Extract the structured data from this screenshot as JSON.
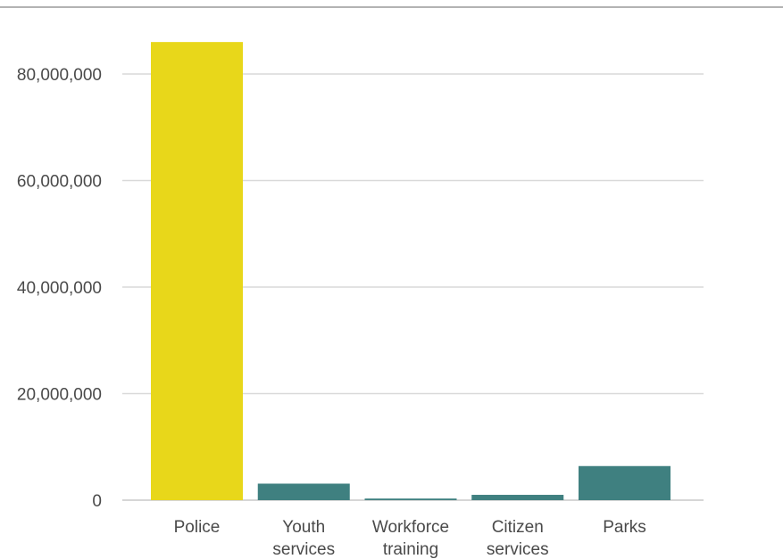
{
  "chart_data": {
    "type": "bar",
    "title": "",
    "xlabel": "",
    "ylabel": "",
    "ylim": [
      0,
      80000000
    ],
    "ymax_visible": 86000000,
    "yticks": [
      0,
      20000000,
      40000000,
      60000000,
      80000000
    ],
    "ytick_labels": [
      "0",
      "20,000,000",
      "40,000,000",
      "60,000,000",
      "80,000,000"
    ],
    "grid": true,
    "categories": [
      [
        "Police"
      ],
      [
        "Youth",
        "services"
      ],
      [
        "Workforce",
        "training"
      ],
      [
        "Citizen",
        "services"
      ],
      [
        "Parks"
      ]
    ],
    "values": [
      86000000,
      3100000,
      300000,
      1000000,
      6400000
    ],
    "colors": [
      "#e8d71a",
      "#3f8080",
      "#3f8080",
      "#3f8080",
      "#3f8080"
    ]
  }
}
